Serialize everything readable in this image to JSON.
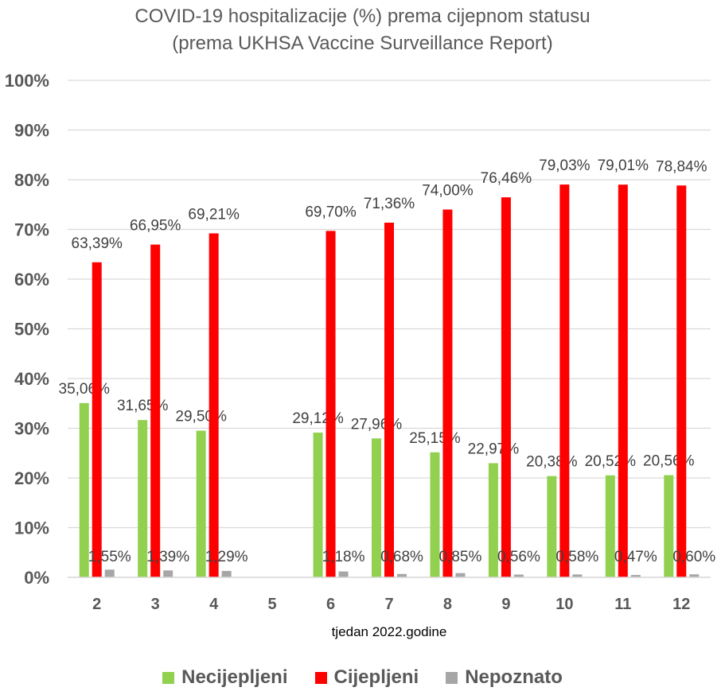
{
  "chart_data": {
    "type": "bar",
    "title": "COVID-19 hospitalizacije (%) prema cijepnom statusu",
    "subtitle": "(prema UKHSA Vaccine Surveillance Report)",
    "xlabel": "tjedan 2022.godine",
    "ylabel": "",
    "ylim": [
      0,
      100
    ],
    "y_ticks": [
      "0%",
      "10%",
      "20%",
      "30%",
      "40%",
      "50%",
      "60%",
      "70%",
      "80%",
      "90%",
      "100%"
    ],
    "grid": true,
    "legend_position": "bottom",
    "categories": [
      "2",
      "3",
      "4",
      "5",
      "6",
      "7",
      "8",
      "9",
      "10",
      "11",
      "12"
    ],
    "series": [
      {
        "name": "Necijepljeni",
        "color": "#92d050",
        "values": [
          35.06,
          31.65,
          29.5,
          null,
          29.12,
          27.96,
          25.15,
          22.97,
          20.38,
          20.52,
          20.56
        ],
        "labels": [
          "35,06%",
          "31,65%",
          "29,50%",
          "",
          "29,12%",
          "27,96%",
          "25,15%",
          "22,97%",
          "20,38%",
          "20,52%",
          "20,56%"
        ]
      },
      {
        "name": "Cijepljeni",
        "color": "#ff0000",
        "values": [
          63.39,
          66.95,
          69.21,
          null,
          69.7,
          71.36,
          74.0,
          76.46,
          79.03,
          79.01,
          78.84
        ],
        "labels": [
          "63,39%",
          "66,95%",
          "69,21%",
          "",
          "69,70%",
          "71,36%",
          "74,00%",
          "76,46%",
          "79,03%",
          "79,01%",
          "78,84%"
        ]
      },
      {
        "name": "Nepoznato",
        "color": "#a6a6a6",
        "values": [
          1.55,
          1.39,
          1.29,
          null,
          1.18,
          0.68,
          0.85,
          0.56,
          0.58,
          0.47,
          0.6
        ],
        "labels": [
          "1,55%",
          "1,39%",
          "1,29%",
          "",
          "1,18%",
          "0,68%",
          "0,85%",
          "0,56%",
          "0,58%",
          "0,47%",
          "0,60%"
        ]
      }
    ]
  }
}
